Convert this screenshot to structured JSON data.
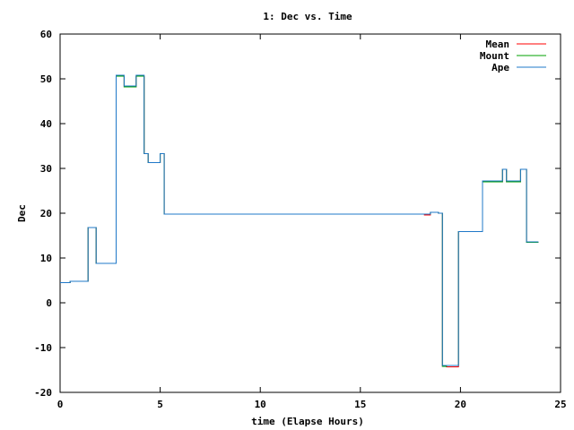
{
  "chart_data": {
    "type": "line",
    "title": "1: Dec vs. Time",
    "xlabel": "time (Elapse Hours)",
    "ylabel": "Dec",
    "xlim": [
      0,
      25
    ],
    "ylim": [
      -20,
      60
    ],
    "xticks": [
      "0",
      "5",
      "10",
      "15",
      "20",
      "25"
    ],
    "yticks": [
      "-20",
      "-10",
      "0",
      "10",
      "20",
      "30",
      "40",
      "50",
      "60"
    ],
    "grid": false,
    "legend_position": "top-right",
    "series": [
      {
        "name": "Mean",
        "color": "#ff0000",
        "x": [
          0,
          0.5,
          0.5,
          1.4,
          1.4,
          1.6,
          1.6,
          1.8,
          1.8,
          2.0,
          2.0,
          2.8,
          2.8,
          3.0,
          3.0,
          3.2,
          3.2,
          3.8,
          3.8,
          4.2,
          4.2,
          4.4,
          4.4,
          5.0,
          5.0,
          5.2,
          5.2,
          18.2,
          18.2,
          18.5,
          18.5,
          18.9,
          18.9,
          19.1,
          19.1,
          19.3,
          19.3,
          19.9,
          19.9,
          20.2,
          20.2,
          21.1,
          21.1,
          21.2,
          21.2,
          22.1,
          22.1,
          22.3,
          22.3,
          22.4,
          22.4,
          23.0,
          23.0,
          23.3,
          23.3,
          23.5,
          23.5,
          23.9
        ],
        "y": [
          4.5,
          4.5,
          4.8,
          4.8,
          16.8,
          16.8,
          16.8,
          16.8,
          8.8,
          8.8,
          8.8,
          8.8,
          50.6,
          50.6,
          50.6,
          50.6,
          48.2,
          48.2,
          50.6,
          50.6,
          33.3,
          33.3,
          31.3,
          31.3,
          33.3,
          33.3,
          19.8,
          19.8,
          19.6,
          19.6,
          20.2,
          20.2,
          20.0,
          20.0,
          -14.2,
          -14.2,
          -14.3,
          -14.3,
          15.9,
          15.9,
          15.9,
          15.9,
          27.0,
          27.0,
          27.0,
          27.0,
          29.8,
          29.8,
          27.0,
          27.0,
          27.0,
          27.0,
          29.8,
          29.8,
          13.5,
          13.5,
          13.5,
          13.5
        ]
      },
      {
        "name": "Mount",
        "color": "#00a000",
        "x": [
          0,
          0.5,
          0.5,
          1.4,
          1.4,
          1.6,
          1.6,
          1.8,
          1.8,
          2.0,
          2.0,
          2.8,
          2.8,
          3.0,
          3.0,
          3.2,
          3.2,
          3.8,
          3.8,
          4.2,
          4.2,
          4.4,
          4.4,
          5.0,
          5.0,
          5.2,
          5.2,
          18.2,
          18.2,
          18.5,
          18.5,
          18.9,
          18.9,
          19.1,
          19.1,
          19.3,
          19.3,
          19.9,
          19.9,
          20.2,
          20.2,
          21.1,
          21.1,
          21.2,
          21.2,
          22.1,
          22.1,
          22.3,
          22.3,
          22.4,
          22.4,
          23.0,
          23.0,
          23.3,
          23.3,
          23.5,
          23.5,
          23.9
        ],
        "y": [
          4.5,
          4.5,
          4.8,
          4.8,
          16.8,
          16.8,
          16.8,
          16.8,
          8.8,
          8.8,
          8.8,
          8.8,
          50.6,
          50.6,
          50.6,
          50.6,
          48.2,
          48.2,
          50.6,
          50.6,
          33.3,
          33.3,
          31.3,
          31.3,
          33.3,
          33.3,
          19.8,
          19.8,
          19.8,
          19.8,
          20.2,
          20.2,
          20.0,
          20.0,
          -14.2,
          -14.2,
          -14.0,
          -14.0,
          15.9,
          15.9,
          15.9,
          15.9,
          27.0,
          27.0,
          27.0,
          27.0,
          29.8,
          29.8,
          27.0,
          27.0,
          27.0,
          27.0,
          29.8,
          29.8,
          13.5,
          13.5,
          13.5,
          13.5
        ]
      },
      {
        "name": "Ape",
        "color": "#1f78c8",
        "x": [
          0,
          0.5,
          0.5,
          1.4,
          1.4,
          1.6,
          1.6,
          1.8,
          1.8,
          2.0,
          2.0,
          2.8,
          2.8,
          3.0,
          3.0,
          3.2,
          3.2,
          3.8,
          3.8,
          4.2,
          4.2,
          4.4,
          4.4,
          5.0,
          5.0,
          5.2,
          5.2,
          18.2,
          18.2,
          18.5,
          18.5,
          18.9,
          18.9,
          19.1,
          19.1,
          19.3,
          19.3,
          19.9,
          19.9,
          20.2,
          20.2,
          21.1,
          21.1,
          21.2,
          21.2,
          22.1,
          22.1,
          22.3,
          22.3,
          22.4,
          22.4,
          23.0,
          23.0,
          23.3,
          23.3,
          23.5,
          23.5,
          23.9
        ],
        "y": [
          4.5,
          4.5,
          4.8,
          4.8,
          16.8,
          16.8,
          16.8,
          16.8,
          8.8,
          8.8,
          8.8,
          8.8,
          50.8,
          50.8,
          50.8,
          50.8,
          48.4,
          48.4,
          50.8,
          50.8,
          33.3,
          33.3,
          31.3,
          31.3,
          33.3,
          33.3,
          19.8,
          19.8,
          19.8,
          19.8,
          20.2,
          20.2,
          20.0,
          20.0,
          -14.0,
          -14.0,
          -14.0,
          -14.0,
          15.9,
          15.9,
          15.9,
          15.9,
          27.2,
          27.2,
          27.2,
          27.2,
          29.8,
          29.8,
          27.2,
          27.2,
          27.2,
          27.2,
          29.8,
          29.8,
          13.6,
          13.6,
          13.6,
          13.6
        ]
      }
    ]
  }
}
